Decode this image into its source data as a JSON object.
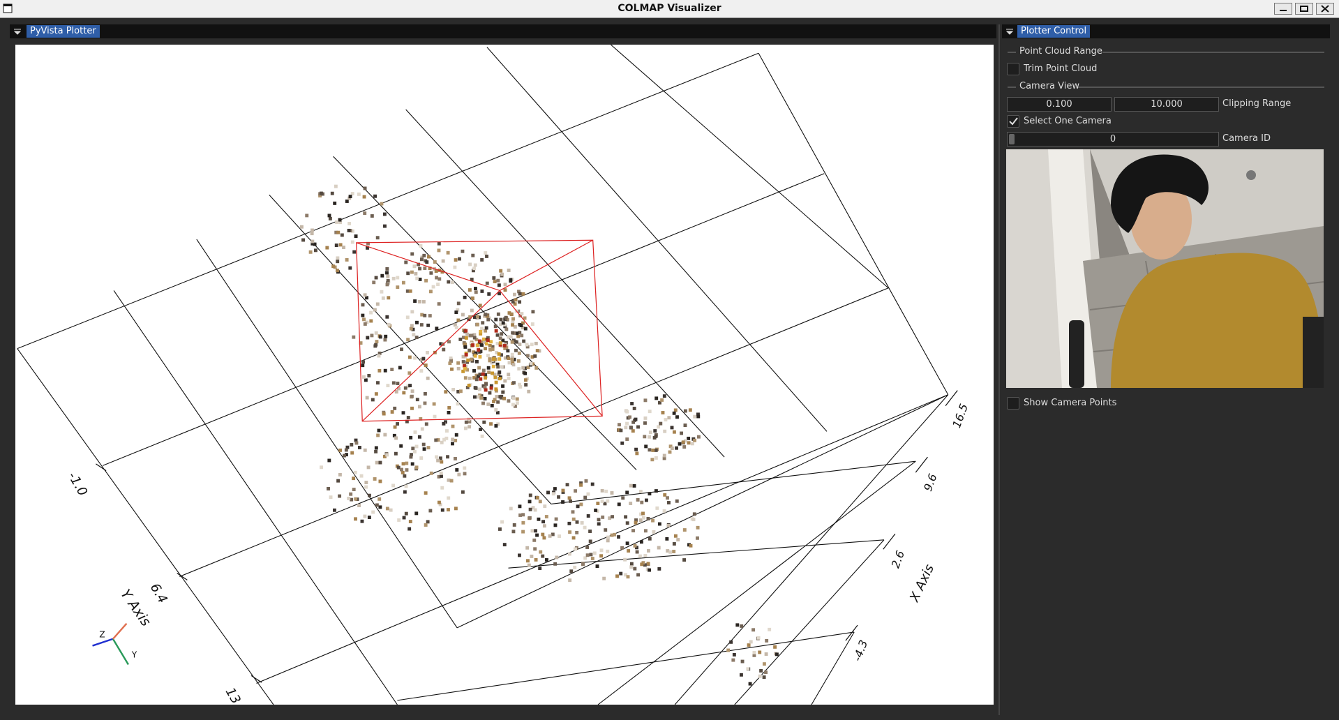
{
  "window": {
    "title": "COLMAP Visualizer"
  },
  "plotter": {
    "tab": "PyVista Plotter",
    "axes": {
      "x_axis": "X Axis",
      "y_axis": "Y Axis",
      "x_ticks": [
        "16.5",
        "9.6",
        "2.6",
        "-4.3"
      ],
      "y_ticks": [
        "-1.0",
        "6.4",
        "13"
      ]
    },
    "orientation": {
      "z": "Z",
      "y": "Y"
    }
  },
  "control": {
    "tab": "Plotter Control",
    "point_cloud_range": "Point Cloud Range",
    "trim_point_cloud": "Trim Point Cloud",
    "trim_checked": false,
    "camera_view": "Camera View",
    "clip_near": "0.100",
    "clip_far": "10.000",
    "clipping_range": "Clipping Range",
    "select_one_camera": "Select One Camera",
    "select_checked": true,
    "camera_id_value": "0",
    "camera_id": "Camera ID",
    "show_camera_points": "Show Camera Points",
    "show_checked": false
  }
}
